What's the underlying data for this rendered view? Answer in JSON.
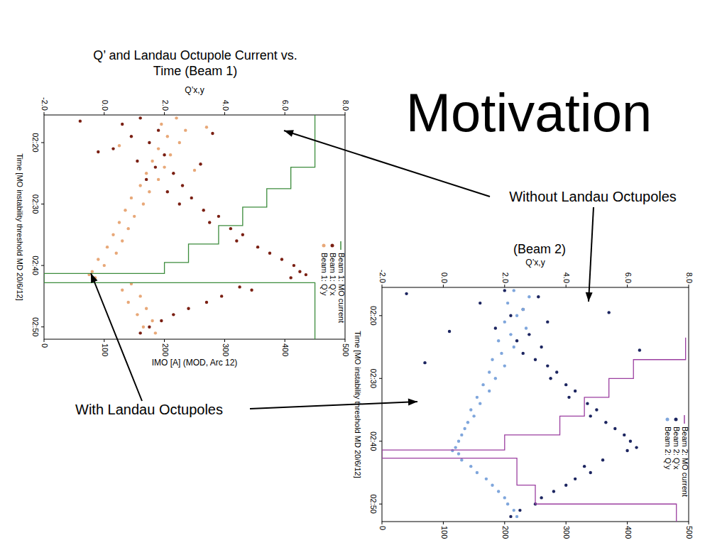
{
  "slide": {
    "title": "Motivation",
    "annotations": [
      "Without Landau Octupoles",
      "With Landau Octupoles"
    ]
  },
  "chart_data": [
    {
      "type": "scatter",
      "title": "Q’ and Landau Octupole Current vs. Time (Beam 1)",
      "x_label": "Time  [MO instability threshold MD 20/6/12]",
      "y_label": "Q’x,y",
      "y2_label": "IMO [A]   (MOD, Arc 12)",
      "xlim": [
        135.5,
        172
      ],
      "xticks": [
        {
          "value": 140,
          "label": "02:20"
        },
        {
          "value": 150,
          "label": "02:30"
        },
        {
          "value": 160,
          "label": "02:40"
        },
        {
          "value": 170,
          "label": "02:50"
        }
      ],
      "ylim": [
        -2,
        8
      ],
      "yticks": [
        {
          "value": -2,
          "label": "-2.0"
        },
        {
          "value": 0,
          "label": "0.0"
        },
        {
          "value": 2,
          "label": "2.0"
        },
        {
          "value": 4,
          "label": "4.0"
        },
        {
          "value": 6,
          "label": "6.0"
        },
        {
          "value": 8,
          "label": "8.0"
        }
      ],
      "y2lim": [
        0,
        500
      ],
      "y2ticks": [
        0,
        100,
        200,
        300,
        400,
        500
      ],
      "legend": "right",
      "series": [
        {
          "name": "Beam 1: MO current",
          "type": "line",
          "axis": "y2",
          "color": "#3c8c3c",
          "line_style": "solid",
          "x": [
            135.5,
            144,
            144,
            147.5,
            147.5,
            150.5,
            150.5,
            153.5,
            153.5,
            156.5,
            156.5,
            159.5,
            159.5,
            161.3,
            161.3,
            162.8,
            162.8,
            172
          ],
          "values": [
            450,
            450,
            410,
            410,
            370,
            370,
            330,
            330,
            290,
            290,
            240,
            240,
            200,
            200,
            0,
            0,
            450,
            450
          ]
        },
        {
          "name": "Beam 1: Q’x",
          "color": "#7a1f12",
          "marker": "dot",
          "x": [
            136,
            136.5,
            137,
            138,
            138.5,
            139,
            140,
            141,
            141.5,
            142,
            143,
            143.5,
            144,
            145,
            146,
            147,
            148,
            149,
            150,
            151,
            152,
            153,
            154,
            155,
            156,
            157,
            158,
            159,
            160,
            161,
            161.5,
            162,
            163.5,
            164,
            165,
            166,
            167,
            168,
            169,
            170,
            171
          ],
          "values": [
            1.2,
            -0.8,
            0.6,
            1.8,
            3.6,
            0.9,
            1.5,
            0.3,
            -0.2,
            2.0,
            1.1,
            3.2,
            1.7,
            2.3,
            1.4,
            2.6,
            2.1,
            2.9,
            2.5,
            3.3,
            3.8,
            3.5,
            4.2,
            4.6,
            4.4,
            5.1,
            5.5,
            5.9,
            6.3,
            6.5,
            6.7,
            6.2,
            4.5,
            4.9,
            3.9,
            3.4,
            2.8,
            2.3,
            1.9,
            1.5,
            1.2
          ]
        },
        {
          "name": "Beam 1: Q’y",
          "color": "#e8a878",
          "marker": "dot",
          "x": [
            136,
            137,
            137.5,
            138,
            139,
            140,
            140.5,
            141,
            142,
            143,
            144,
            144.5,
            145,
            146,
            147,
            148,
            149,
            150,
            151,
            152,
            153,
            154,
            155,
            156,
            157,
            158,
            159,
            160,
            161,
            161.5,
            162,
            163,
            164,
            165,
            166,
            167,
            168,
            169,
            170,
            171
          ],
          "values": [
            2.4,
            1.9,
            3.4,
            2.7,
            2.1,
            2.5,
            0.5,
            1.8,
            2.2,
            1.6,
            2.0,
            3.0,
            1.4,
            1.8,
            1.2,
            1.5,
            0.9,
            1.3,
            0.7,
            1.0,
            0.5,
            0.8,
            0.3,
            0.6,
            0.1,
            0.4,
            -0.2,
            0.0,
            -0.4,
            -0.5,
            -0.3,
            0.9,
            0.6,
            1.2,
            0.8,
            1.4,
            1.1,
            1.6,
            1.3,
            1.7
          ]
        }
      ]
    },
    {
      "type": "scatter",
      "title": "(Beam 2)",
      "x_label": "Time  [MO instability threshold MD 20/6/12]",
      "y_label": "Q’x,y",
      "xlim": [
        135.5,
        172.8
      ],
      "xticks": [
        {
          "value": 140,
          "label": "02:20"
        },
        {
          "value": 150,
          "label": "02:30"
        },
        {
          "value": 160,
          "label": "02:40"
        },
        {
          "value": 170,
          "label": "02:50"
        }
      ],
      "ylim": [
        -2,
        8
      ],
      "yticks": [
        {
          "value": -2,
          "label": "-2.0"
        },
        {
          "value": 0,
          "label": "0.0"
        },
        {
          "value": 2,
          "label": "2.0"
        },
        {
          "value": 4,
          "label": "4.0"
        },
        {
          "value": 6,
          "label": "6.0"
        },
        {
          "value": 8,
          "label": "8.0"
        }
      ],
      "y2lim": [
        0,
        500
      ],
      "y2ticks": [
        0,
        100,
        200,
        300,
        400,
        500
      ],
      "legend": "right",
      "series": [
        {
          "name": "Beam 2: MO current",
          "type": "line",
          "axis": "y2",
          "color": "#9b3fa0",
          "line_style": "solid",
          "x": [
            143.5,
            147,
            147,
            150,
            150,
            153,
            153,
            156,
            156,
            159,
            159,
            161.4,
            161.4,
            162.7,
            162.7,
            167,
            167,
            170,
            170,
            172.8
          ],
          "values": [
            495,
            495,
            410,
            410,
            370,
            370,
            330,
            330,
            290,
            290,
            200,
            200,
            0,
            0,
            220,
            220,
            250,
            250,
            480,
            480
          ]
        },
        {
          "name": "Beam 2: Q’x",
          "color": "#1c2560",
          "marker": "dot",
          "x": [
            136,
            136.5,
            137,
            138,
            139,
            139.5,
            140,
            141,
            142,
            142.5,
            143,
            144,
            145,
            145.5,
            146,
            147,
            147.5,
            148,
            149,
            150,
            151,
            152,
            153,
            154,
            155,
            156,
            157,
            158,
            159,
            160,
            161,
            161.5,
            163,
            164,
            165,
            166,
            167,
            168,
            169,
            170,
            171,
            172
          ],
          "values": [
            2.0,
            -1.2,
            3.1,
            1.2,
            2.6,
            5.4,
            2.2,
            3.4,
            1.7,
            0.2,
            2.8,
            2.4,
            3.2,
            6.4,
            2.6,
            3.0,
            -0.6,
            3.4,
            3.7,
            3.5,
            4.0,
            4.3,
            4.1,
            4.7,
            5.0,
            4.8,
            5.3,
            5.6,
            5.9,
            6.1,
            6.3,
            6.0,
            5.2,
            4.6,
            4.8,
            4.3,
            4.0,
            3.6,
            3.2,
            3.0,
            2.5,
            2.2
          ]
        },
        {
          "name": "Beam 2: Q’y",
          "color": "#7fa6dc",
          "marker": "dot",
          "x": [
            136,
            137,
            138,
            139,
            140,
            141,
            142,
            143,
            144,
            145,
            146,
            147,
            148,
            149,
            150,
            151,
            152,
            153,
            154,
            155,
            156,
            157,
            158,
            159,
            160,
            161,
            161.5,
            162,
            163,
            164,
            165,
            166,
            167,
            168,
            169,
            170,
            171,
            172
          ],
          "values": [
            2.3,
            2.8,
            2.1,
            2.6,
            2.4,
            2.0,
            2.7,
            2.2,
            1.8,
            2.3,
            1.9,
            1.6,
            2.0,
            1.5,
            1.7,
            1.3,
            1.5,
            1.1,
            1.2,
            0.9,
            1.0,
            0.8,
            0.7,
            0.6,
            0.5,
            0.4,
            0.3,
            0.5,
            0.6,
            0.9,
            1.1,
            1.4,
            1.6,
            1.8,
            2.0,
            2.1,
            2.3,
            2.4
          ]
        }
      ]
    }
  ]
}
